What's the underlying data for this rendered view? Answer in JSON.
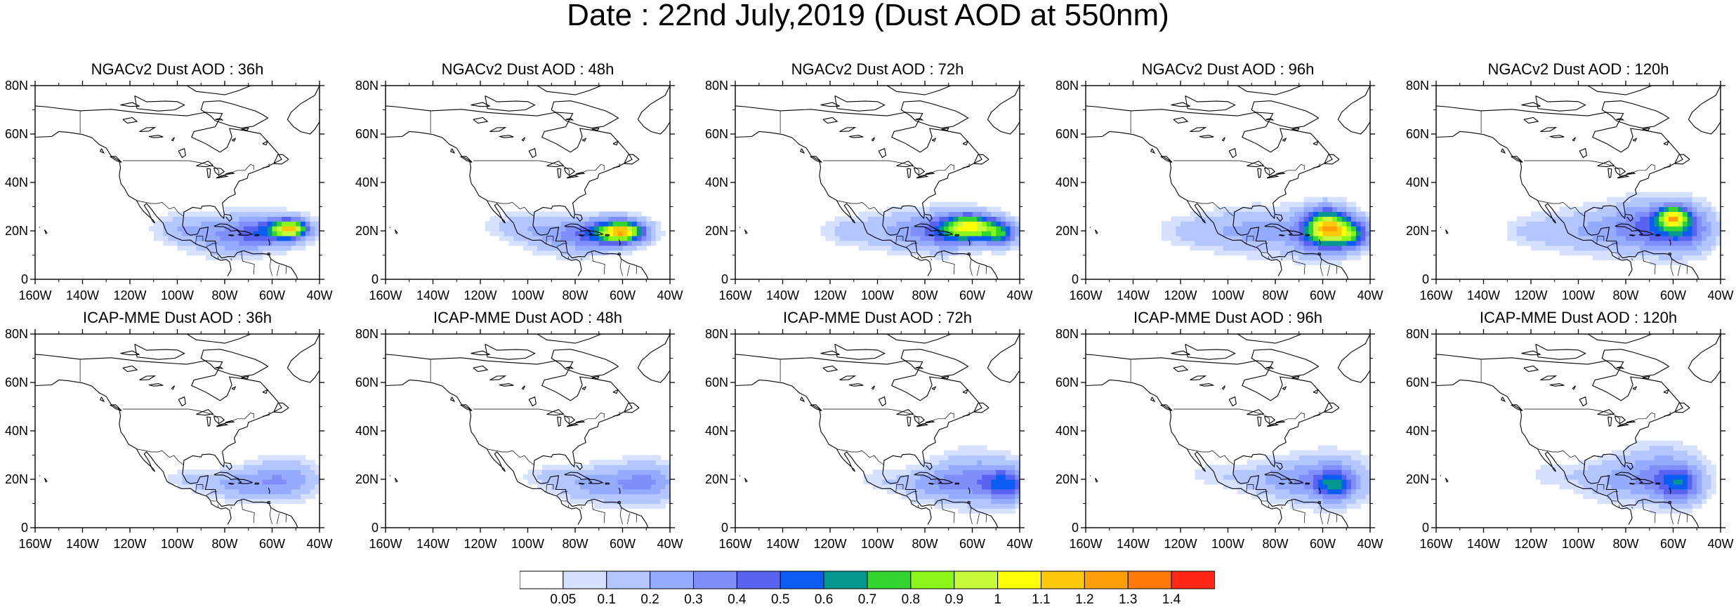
{
  "title": "Date : 22nd July,2019 (Dust AOD at 550nm)",
  "panels": [
    {
      "title": "NGACv2 Dust AOD : 36h",
      "model": "NGAC",
      "lead": 36
    },
    {
      "title": "NGACv2 Dust AOD : 48h",
      "model": "NGAC",
      "lead": 48
    },
    {
      "title": "NGACv2 Dust AOD : 72h",
      "model": "NGAC",
      "lead": 72
    },
    {
      "title": "NGACv2 Dust AOD : 96h",
      "model": "NGAC",
      "lead": 96
    },
    {
      "title": "NGACv2 Dust AOD : 120h",
      "model": "NGAC",
      "lead": 120
    },
    {
      "title": "ICAP-MME Dust AOD : 36h",
      "model": "ICAP",
      "lead": 36
    },
    {
      "title": "ICAP-MME Dust AOD : 48h",
      "model": "ICAP",
      "lead": 48
    },
    {
      "title": "ICAP-MME Dust AOD : 72h",
      "model": "ICAP",
      "lead": 72
    },
    {
      "title": "ICAP-MME Dust AOD : 96h",
      "model": "ICAP",
      "lead": 96
    },
    {
      "title": "ICAP-MME Dust AOD : 120h",
      "model": "ICAP",
      "lead": 120
    }
  ],
  "axes": {
    "lon_ticks": [
      "160W",
      "140W",
      "120W",
      "100W",
      "80W",
      "60W",
      "40W"
    ],
    "lon_values": [
      -160,
      -140,
      -120,
      -100,
      -80,
      -60,
      -40
    ],
    "lat_ticks": [
      "0",
      "20N",
      "40N",
      "60N",
      "80N"
    ],
    "lat_values": [
      0,
      20,
      40,
      60,
      80
    ],
    "lon_range": [
      -160,
      -40
    ],
    "lat_range": [
      0,
      80
    ]
  },
  "colorbar": {
    "labels": [
      "0.05",
      "0.1",
      "0.2",
      "0.3",
      "0.4",
      "0.5",
      "0.6",
      "0.7",
      "0.8",
      "0.9",
      "1",
      "1.1",
      "1.2",
      "1.3",
      "1.4"
    ],
    "colors": [
      "#ffffff",
      "#d6e0ff",
      "#b4c6ff",
      "#94abff",
      "#7f8ef9",
      "#5a63f0",
      "#0a5cf2",
      "#05968f",
      "#32d62f",
      "#8cf51a",
      "#c8fa3c",
      "#ffff0a",
      "#ffc80a",
      "#ffa00a",
      "#ff780a",
      "#ff2814"
    ]
  }
}
